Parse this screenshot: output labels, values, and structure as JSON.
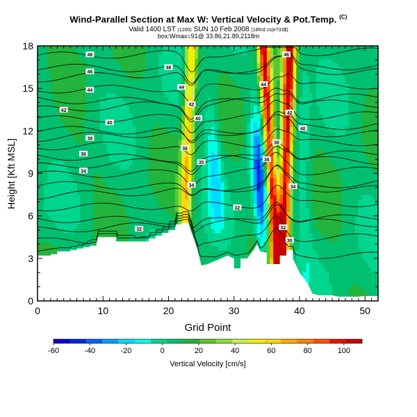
{
  "header": {
    "title": "Wind-Parallel Section at Max W: Vertical Velocity & Pot.Temp.",
    "title_mark": "(C)",
    "subtitle": "Valid 1400 LST",
    "subtitle_small": "(1200)",
    "subtitle_rest": "SUN 10 Feb 2008",
    "subtitle_tail": "(18hrd cs(e?33$)",
    "subtitle2": "box:Wmax=91@ 33.86,21.89,2118m"
  },
  "colors": {
    "ground": "#ffffff",
    "contour": "#000000"
  },
  "chart_data": {
    "type": "heatmap",
    "xlabel": "Grid Point",
    "ylabel": "Height [Kft MSL]",
    "xlim": [
      0,
      52
    ],
    "ylim": [
      0,
      18
    ],
    "xticks": [
      0,
      10,
      20,
      30,
      40,
      50
    ],
    "yticks": [
      0,
      3,
      6,
      9,
      12,
      15,
      18
    ],
    "colorbar": {
      "label": "Vertical Velocity [cm/s]",
      "ticks": [
        "-60",
        "-40",
        "-20",
        "0",
        "20",
        "40",
        "60",
        "80",
        "100"
      ],
      "colors": [
        "#0000c8",
        "#0028e6",
        "#0064ff",
        "#00a0ff",
        "#00dcff",
        "#00ffe6",
        "#00d68f",
        "#00c070",
        "#22b43c",
        "#5cc82a",
        "#8ee03c",
        "#c8f050",
        "#f0f000",
        "#ffd700",
        "#ffaa00",
        "#ff8000",
        "#ff5000",
        "#ee1000",
        "#c80000"
      ]
    },
    "terrain": [
      [
        0,
        3.2
      ],
      [
        1,
        3.2
      ],
      [
        2,
        3.2
      ],
      [
        2,
        3.3
      ],
      [
        3,
        3.3
      ],
      [
        3,
        3.5
      ],
      [
        5,
        3.5
      ],
      [
        5,
        3.6
      ],
      [
        6,
        3.6
      ],
      [
        6,
        3.7
      ],
      [
        7,
        3.7
      ],
      [
        7,
        3.8
      ],
      [
        8,
        3.8
      ],
      [
        8,
        3.9
      ],
      [
        9,
        3.9
      ],
      [
        9,
        4.5
      ],
      [
        10,
        4.5
      ],
      [
        12,
        4.5
      ],
      [
        12,
        4.2
      ],
      [
        16,
        4.2
      ],
      [
        17,
        4.2
      ],
      [
        17,
        4.4
      ],
      [
        18,
        4.4
      ],
      [
        18,
        4.6
      ],
      [
        19,
        4.6
      ],
      [
        19,
        4.8
      ],
      [
        20,
        4.8
      ],
      [
        20,
        5.0
      ],
      [
        21,
        5.0
      ],
      [
        21,
        5.4
      ],
      [
        22,
        5.4
      ],
      [
        22,
        5.5
      ],
      [
        23,
        5.5
      ],
      [
        24,
        4.2
      ],
      [
        24.5,
        3.5
      ],
      [
        25,
        2.5
      ],
      [
        26,
        2.6
      ],
      [
        27,
        2.8
      ],
      [
        28,
        3.0
      ],
      [
        29,
        3.2
      ],
      [
        30,
        3.0
      ],
      [
        30,
        2.3
      ],
      [
        31,
        2.3
      ],
      [
        31,
        3.0
      ],
      [
        32,
        3.0
      ],
      [
        33,
        3.6
      ],
      [
        33.5,
        4.0
      ],
      [
        34,
        3.5
      ],
      [
        35,
        3.4
      ],
      [
        35,
        2.6
      ],
      [
        36,
        2.6
      ],
      [
        37,
        2.6
      ],
      [
        37,
        3.2
      ],
      [
        38,
        3.2
      ],
      [
        38,
        3.6
      ],
      [
        39,
        3.6
      ],
      [
        39,
        3.0
      ],
      [
        40,
        2.0
      ],
      [
        41,
        1.4
      ],
      [
        41.5,
        1.0
      ],
      [
        42,
        0.5
      ],
      [
        43,
        0.4
      ],
      [
        45,
        0.4
      ],
      [
        46,
        0.3
      ],
      [
        49,
        0.3
      ],
      [
        50,
        0.35
      ],
      [
        52,
        0.35
      ]
    ],
    "contour_labels": [
      {
        "x": 8,
        "y": 17.4,
        "text": "46"
      },
      {
        "x": 8,
        "y": 16.2,
        "text": "46"
      },
      {
        "x": 8,
        "y": 14.9,
        "text": "44"
      },
      {
        "x": 4,
        "y": 13.5,
        "text": "42"
      },
      {
        "x": 8,
        "y": 11.5,
        "text": "38"
      },
      {
        "x": 7,
        "y": 10.4,
        "text": "36"
      },
      {
        "x": 7,
        "y": 9.2,
        "text": "34"
      },
      {
        "x": 11,
        "y": 12.6,
        "text": "40"
      },
      {
        "x": 20,
        "y": 16.5,
        "text": "46"
      },
      {
        "x": 22,
        "y": 15.1,
        "text": "44"
      },
      {
        "x": 23.5,
        "y": 13.9,
        "text": "42"
      },
      {
        "x": 24.5,
        "y": 12.9,
        "text": "40"
      },
      {
        "x": 22.5,
        "y": 10.8,
        "text": "36"
      },
      {
        "x": 25,
        "y": 9.8,
        "text": "35"
      },
      {
        "x": 23.5,
        "y": 8.2,
        "text": "34"
      },
      {
        "x": 15.5,
        "y": 5.1,
        "text": "32"
      },
      {
        "x": 30.5,
        "y": 6.6,
        "text": "32"
      },
      {
        "x": 38,
        "y": 17.4,
        "text": "46"
      },
      {
        "x": 34.5,
        "y": 15.3,
        "text": "44"
      },
      {
        "x": 38.5,
        "y": 13.3,
        "text": "42"
      },
      {
        "x": 40.5,
        "y": 12.2,
        "text": "40"
      },
      {
        "x": 36.5,
        "y": 11.2,
        "text": "38"
      },
      {
        "x": 35,
        "y": 10.0,
        "text": "36"
      },
      {
        "x": 39,
        "y": 8.1,
        "text": "34"
      },
      {
        "x": 37.5,
        "y": 5.2,
        "text": "32"
      },
      {
        "x": 38.5,
        "y": 4.3,
        "text": "30"
      }
    ],
    "contour_start_levels": [
      3.5,
      4.2,
      5.0,
      5.8,
      6.6,
      7.4,
      8.2,
      8.9,
      9.5,
      10.2,
      10.9,
      11.5,
      12.1,
      12.8,
      13.5,
      14.2,
      14.9,
      15.7,
      16.5,
      17.3
    ],
    "velocity_features": [
      {
        "kind": "updraft",
        "x_top": 23.5,
        "x_bottom": 22.5,
        "y_bottom": 6.0,
        "y_top": 18,
        "peak": 55
      },
      {
        "kind": "updraft",
        "x_top": 34.5,
        "x_bottom": 36.5,
        "y_bottom": 3.0,
        "y_top": 18,
        "peak": 95
      },
      {
        "kind": "updraft",
        "x_top": 38.5,
        "x_bottom": 37.5,
        "y_bottom": 3.5,
        "y_top": 18,
        "peak": 100
      },
      {
        "kind": "downdraft",
        "x_top": 26.5,
        "x_bottom": 27.5,
        "y_bottom": 5.5,
        "y_top": 14,
        "peak": -25
      },
      {
        "kind": "downdraft",
        "x_top": 33.5,
        "x_bottom": 34.5,
        "y_bottom": 4.0,
        "y_top": 12,
        "peak": -55
      },
      {
        "kind": "downdraft",
        "x_top": 40.5,
        "x_bottom": 41,
        "y_bottom": 1.5,
        "y_top": 18,
        "peak": -12
      }
    ]
  }
}
